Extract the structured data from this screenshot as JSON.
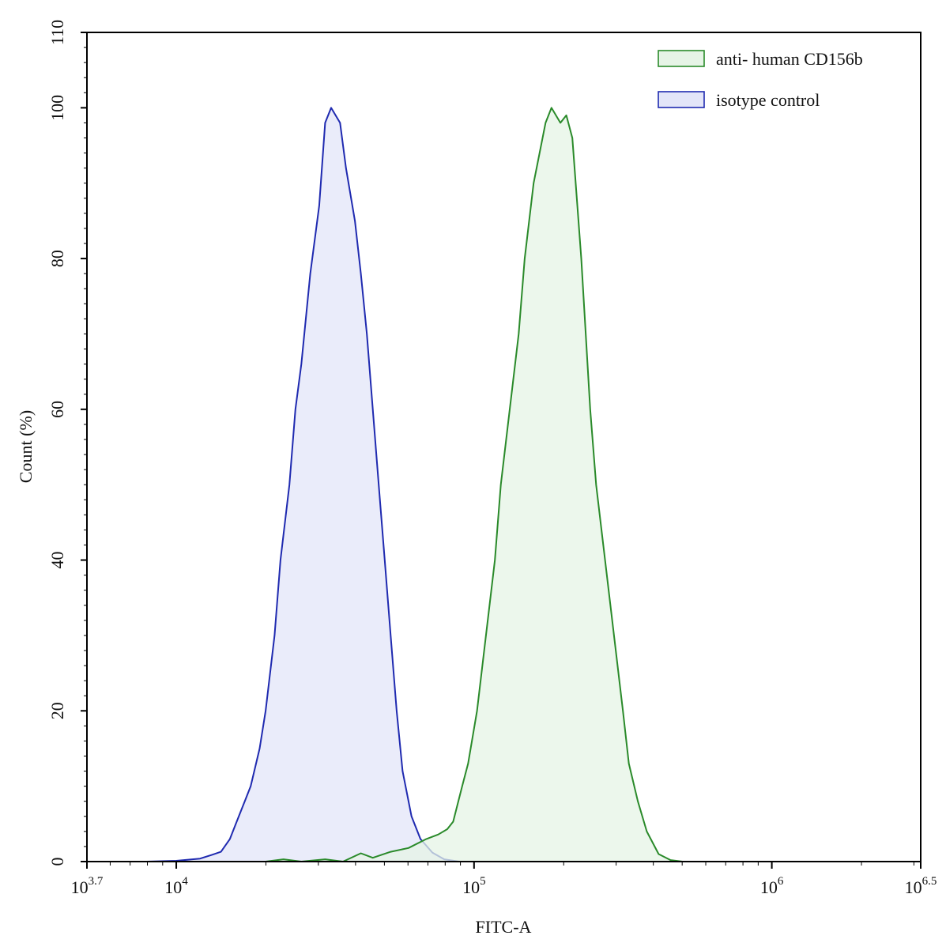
{
  "chart_data": {
    "type": "area",
    "xscale": "log",
    "xlabel": "FITC-A",
    "ylabel": "Count  (%)",
    "xlim_exponent": [
      3.7,
      6.5
    ],
    "ylim": [
      0,
      110
    ],
    "yticks": [
      0,
      20,
      40,
      60,
      80,
      100,
      110
    ],
    "ytick_labels": [
      "0",
      "20",
      "40",
      "60",
      "80",
      "100",
      "110"
    ],
    "xticks": [
      {
        "exponent": 3.7,
        "base": "10",
        "sup": "3.7"
      },
      {
        "exponent": 4,
        "base": "10",
        "sup": "4"
      },
      {
        "exponent": 5,
        "base": "10",
        "sup": "5"
      },
      {
        "exponent": 6,
        "base": "10",
        "sup": "6"
      },
      {
        "exponent": 6.5,
        "base": "10",
        "sup": "6.5"
      }
    ],
    "legend_position": "top-right",
    "series": [
      {
        "name": "anti- human CD156b",
        "color": "#2a8a2a",
        "fill": "#e6f4e6",
        "points": [
          [
            3.7,
            0
          ],
          [
            4.3,
            0
          ],
          [
            4.36,
            0.3
          ],
          [
            4.42,
            0
          ],
          [
            4.5,
            0.3
          ],
          [
            4.56,
            0
          ],
          [
            4.62,
            1.1
          ],
          [
            4.66,
            0.5
          ],
          [
            4.72,
            1.3
          ],
          [
            4.78,
            1.8
          ],
          [
            4.84,
            3.0
          ],
          [
            4.88,
            3.6
          ],
          [
            4.91,
            4.3
          ],
          [
            4.93,
            5.3
          ],
          [
            4.96,
            10
          ],
          [
            4.98,
            13
          ],
          [
            5.01,
            20
          ],
          [
            5.04,
            30
          ],
          [
            5.07,
            40
          ],
          [
            5.09,
            50
          ],
          [
            5.12,
            60
          ],
          [
            5.15,
            70
          ],
          [
            5.17,
            80
          ],
          [
            5.2,
            90
          ],
          [
            5.24,
            98
          ],
          [
            5.26,
            100
          ],
          [
            5.29,
            98
          ],
          [
            5.31,
            99
          ],
          [
            5.33,
            96
          ],
          [
            5.36,
            80
          ],
          [
            5.39,
            60
          ],
          [
            5.41,
            50
          ],
          [
            5.44,
            40
          ],
          [
            5.47,
            30
          ],
          [
            5.5,
            20
          ],
          [
            5.52,
            13
          ],
          [
            5.55,
            8
          ],
          [
            5.58,
            4
          ],
          [
            5.62,
            1
          ],
          [
            5.66,
            0.2
          ],
          [
            5.7,
            0
          ],
          [
            6.5,
            0
          ]
        ]
      },
      {
        "name": "isotype control",
        "color": "#1f2ab0",
        "fill": "#e3e5f8",
        "points": [
          [
            3.7,
            0
          ],
          [
            3.9,
            0
          ],
          [
            4.0,
            0.1
          ],
          [
            4.08,
            0.4
          ],
          [
            4.12,
            0.9
          ],
          [
            4.15,
            1.3
          ],
          [
            4.18,
            3
          ],
          [
            4.2,
            5
          ],
          [
            4.23,
            8
          ],
          [
            4.25,
            10
          ],
          [
            4.28,
            15
          ],
          [
            4.3,
            20
          ],
          [
            4.33,
            30
          ],
          [
            4.35,
            40
          ],
          [
            4.38,
            50
          ],
          [
            4.4,
            60
          ],
          [
            4.42,
            66
          ],
          [
            4.45,
            78
          ],
          [
            4.48,
            87
          ],
          [
            4.5,
            98
          ],
          [
            4.52,
            100
          ],
          [
            4.55,
            98
          ],
          [
            4.57,
            92
          ],
          [
            4.6,
            85
          ],
          [
            4.62,
            78
          ],
          [
            4.64,
            70
          ],
          [
            4.66,
            60
          ],
          [
            4.68,
            50
          ],
          [
            4.7,
            40
          ],
          [
            4.72,
            30
          ],
          [
            4.74,
            20
          ],
          [
            4.76,
            12
          ],
          [
            4.79,
            6
          ],
          [
            4.82,
            3
          ],
          [
            4.86,
            1.2
          ],
          [
            4.9,
            0.3
          ],
          [
            4.95,
            0
          ],
          [
            6.5,
            0
          ]
        ]
      }
    ]
  }
}
